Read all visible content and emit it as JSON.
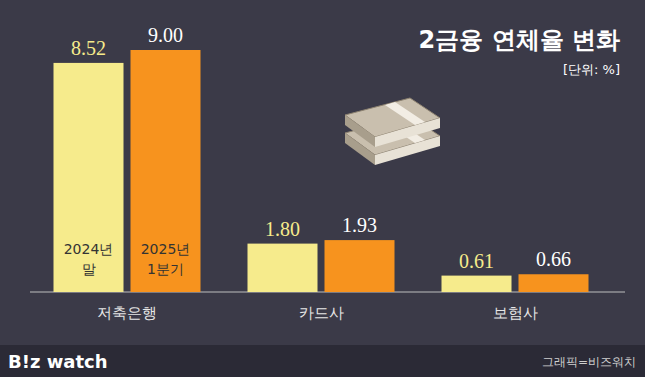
{
  "chart_data": {
    "type": "bar",
    "title": "2금융 연체율 변화",
    "subtitle": "[단위: %]",
    "categories": [
      "저축은행",
      "카드사",
      "보험사"
    ],
    "series": [
      {
        "name": "2024년 말",
        "color": "#f6eb8c",
        "values": [
          8.52,
          1.8,
          0.61
        ],
        "value_labels": [
          "8.52",
          "1.80",
          "0.61"
        ]
      },
      {
        "name": "2025년 1분기",
        "color": "#f7931e",
        "values": [
          9.0,
          1.93,
          0.66
        ],
        "value_labels": [
          "9.00",
          "1.93",
          "0.66"
        ]
      }
    ],
    "ylim": [
      0,
      9.0
    ],
    "grid": false,
    "data_labels": true,
    "tick_labels": "x",
    "logo": "B!z watch",
    "source": "그래픽=비즈워치"
  }
}
